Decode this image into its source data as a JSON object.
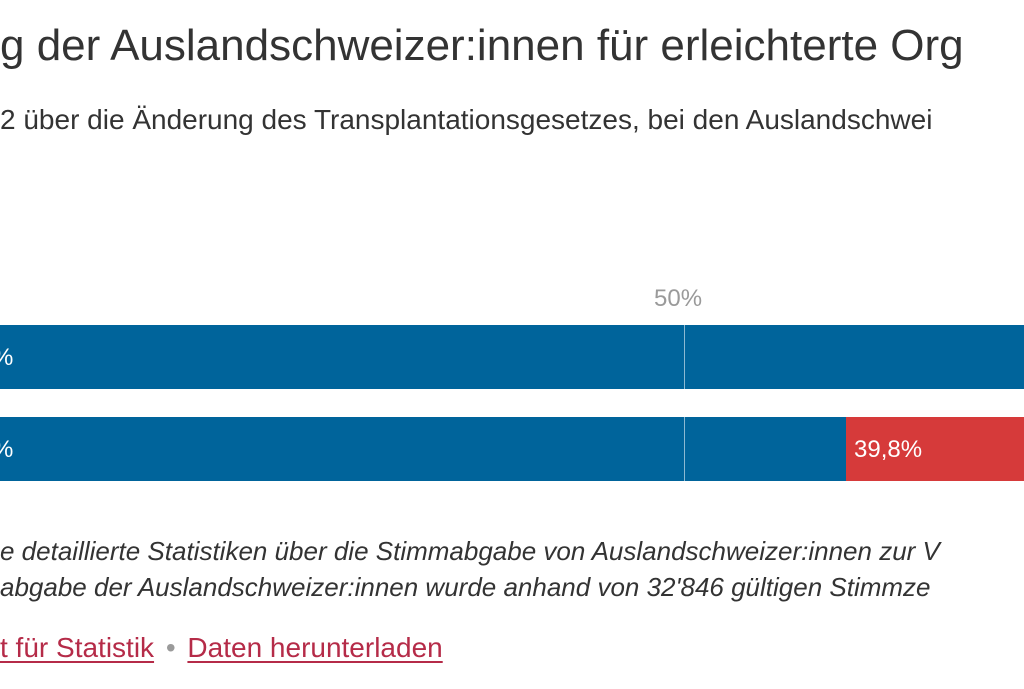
{
  "header": {
    "title": "g der Auslandschweizer:innen für erleichterte Org",
    "subtitle": "2 über die Änderung des Transplantationsgesetzes, bei den Auslandschwei"
  },
  "chart_data": {
    "type": "bar",
    "orientation": "horizontal",
    "stacked": true,
    "xlim": [
      0,
      100
    ],
    "reference_line": 50,
    "reference_label": "50%",
    "rows": [
      {
        "segments": [
          {
            "value": null,
            "label": "%",
            "color": "#00649b"
          }
        ]
      },
      {
        "segments": [
          {
            "value": 60.2,
            "label": "%",
            "color": "#00649b"
          },
          {
            "value": 39.8,
            "label": "39,8%",
            "color": "#d63a3a"
          }
        ]
      }
    ]
  },
  "notes": {
    "line1": "e detaillierte Statistiken über die Stimmabgabe von Auslandschweizer:innen zur V",
    "line2": "abgabe der Auslandschweizer:innen wurde anhand von 32'846 gültigen Stimmze"
  },
  "source": {
    "link1": "t für Statistik",
    "separator": "•",
    "link2": "Daten herunterladen"
  }
}
